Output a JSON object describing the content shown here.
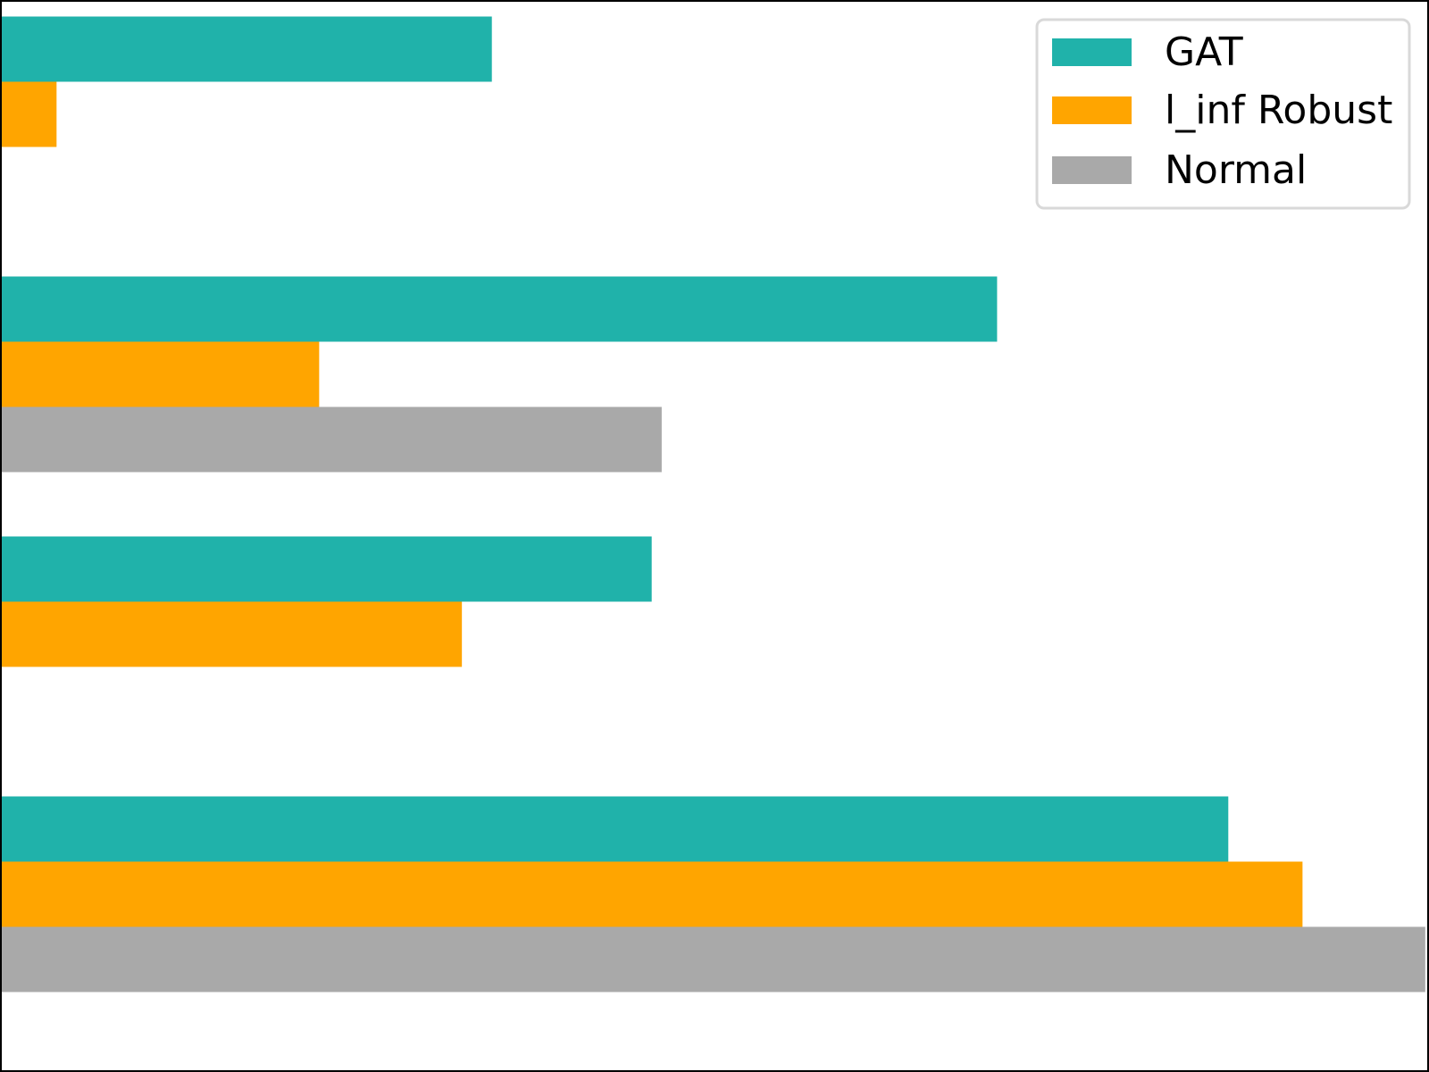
{
  "chart_data": {
    "type": "bar",
    "orientation": "horizontal",
    "title": "",
    "xlabel": "",
    "ylabel": "",
    "xlim": [
      0,
      1.0
    ],
    "tick_labels_visible": false,
    "grid": false,
    "legend": {
      "position": "top-right"
    },
    "groups": 4,
    "series": [
      {
        "name": "GAT",
        "color": "#20b2aa",
        "values": [
          0.344,
          0.698,
          0.456,
          0.86
        ]
      },
      {
        "name": "l_inf Robust",
        "color": "#ffa500",
        "values": [
          0.039,
          0.223,
          0.323,
          0.912
        ]
      },
      {
        "name": "Normal",
        "color": "#a9a9a9",
        "values": [
          0.0,
          0.463,
          0.0,
          0.998
        ]
      }
    ]
  }
}
